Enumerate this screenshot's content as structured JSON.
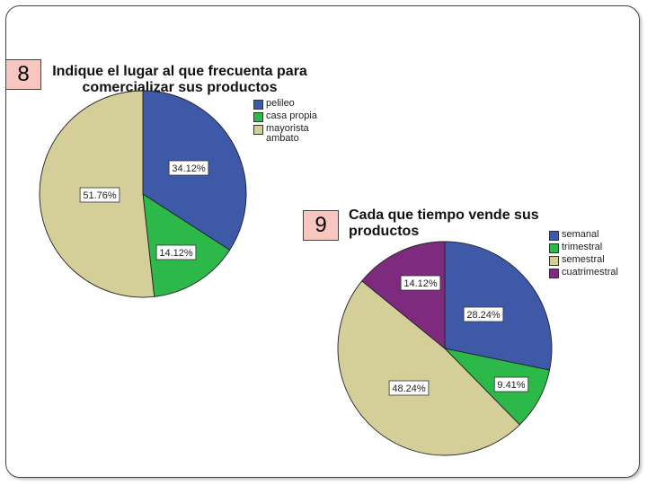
{
  "chart_data": [
    {
      "type": "pie",
      "number": "8",
      "title": "Indique el lugar al que frecuenta para comercializar sus productos",
      "legend_position": "right",
      "series": [
        {
          "name": "pelileo",
          "value": 34.12,
          "label": "34.12%",
          "color": "#3f59a9"
        },
        {
          "name": "casa propia",
          "value": 14.12,
          "label": "14.12%",
          "color": "#2db84a"
        },
        {
          "name": "mayorista ambato",
          "value": 51.76,
          "label": "51.76%",
          "color": "#d4ce98"
        }
      ]
    },
    {
      "type": "pie",
      "number": "9",
      "title": "Cada que tiempo vende sus productos",
      "legend_position": "right",
      "series": [
        {
          "name": "semanal",
          "value": 28.24,
          "label": "28.24%",
          "color": "#3f59a9"
        },
        {
          "name": "trimestral",
          "value": 9.41,
          "label": "9.41%",
          "color": "#2db84a"
        },
        {
          "name": "semestral",
          "value": 48.24,
          "label": "48.24%",
          "color": "#d4ce98"
        },
        {
          "name": "cuatrimestral",
          "value": 14.12,
          "label": "14.12%",
          "color": "#7e2a7e"
        }
      ]
    }
  ]
}
